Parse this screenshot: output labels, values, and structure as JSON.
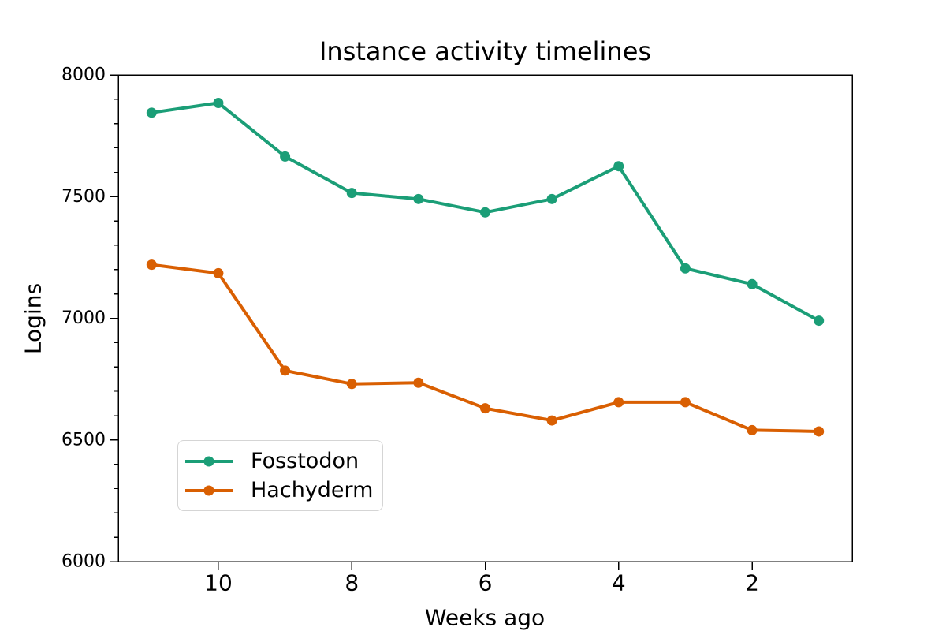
{
  "chart_data": {
    "type": "line",
    "title": "Instance activity timelines",
    "xlabel": "Weeks ago",
    "ylabel": "Logins",
    "x": [
      11,
      10,
      9,
      8,
      7,
      6,
      5,
      4,
      3,
      2,
      1
    ],
    "x_axis": {
      "inverted": true,
      "lim": [
        11.5,
        0.5
      ],
      "ticks": [
        10,
        8,
        6,
        4,
        2
      ]
    },
    "y_axis": {
      "lim": [
        6000,
        8000
      ],
      "ticks": [
        8000,
        7500,
        7000,
        6500,
        6000
      ],
      "minor_step": 100
    },
    "series": [
      {
        "name": "Fosstodon",
        "color": "#1b9e77",
        "values": [
          7845,
          7885,
          7665,
          7515,
          7490,
          7435,
          7490,
          7625,
          7205,
          7140,
          6990
        ]
      },
      {
        "name": "Hachyderm",
        "color": "#d95f02",
        "values": [
          7220,
          7185,
          6785,
          6730,
          6735,
          6630,
          6580,
          6655,
          6655,
          6540,
          6535
        ]
      }
    ],
    "legend": {
      "position": "lower left"
    },
    "marker": "circle",
    "line_width": 4,
    "grid": false
  }
}
